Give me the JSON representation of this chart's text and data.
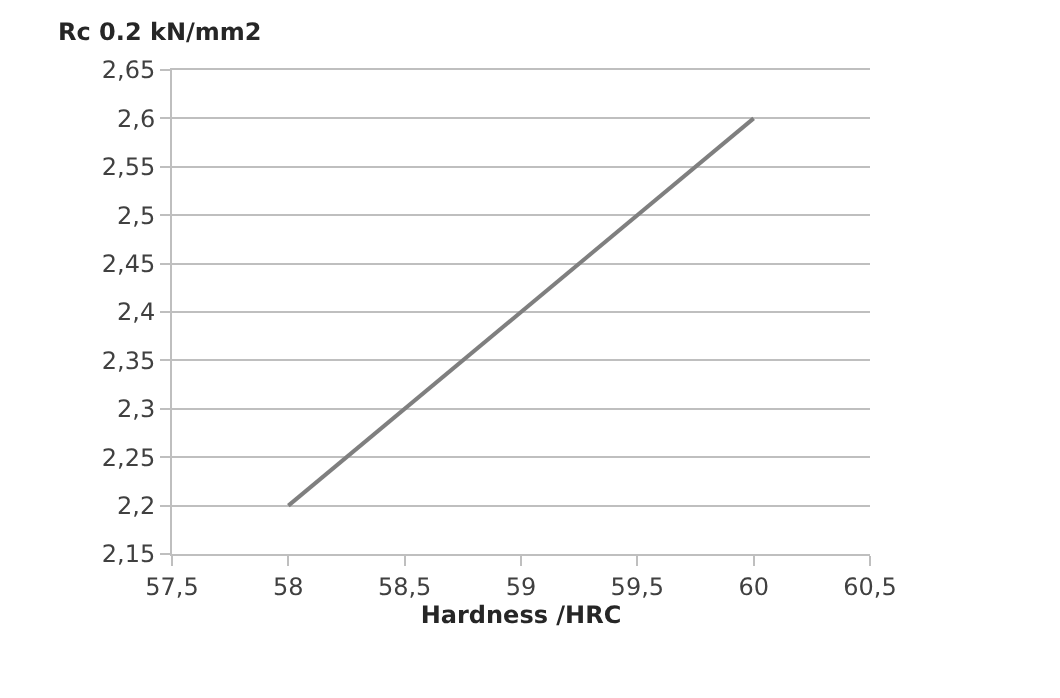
{
  "chart_data": {
    "type": "line",
    "ylabel": "Rc 0.2 kN/mm2",
    "xlabel": "Hardness /HRC",
    "x": [
      58,
      60
    ],
    "series": [
      {
        "color": "#7f7f7f",
        "values": [
          2.2,
          2.6
        ]
      }
    ],
    "xlim": [
      57.5,
      60.5
    ],
    "xticks": [
      {
        "value": 57.5,
        "label": "57,5"
      },
      58,
      {
        "value": 58.5,
        "label": "58,5"
      },
      59,
      {
        "value": 59.5,
        "label": "59,5"
      },
      60,
      {
        "value": 60.5,
        "label": "60,5"
      }
    ],
    "ylim": [
      2.15,
      2.65
    ],
    "yticks": [
      {
        "value": 2.15,
        "label": "2,15"
      },
      {
        "value": 2.2,
        "label": "2,2"
      },
      {
        "value": 2.25,
        "label": "2,25"
      },
      {
        "value": 2.3,
        "label": "2,3"
      },
      {
        "value": 2.35,
        "label": "2,35"
      },
      {
        "value": 2.4,
        "label": "2,4"
      },
      {
        "value": 2.45,
        "label": "2,45"
      },
      {
        "value": 2.5,
        "label": "2,5"
      },
      {
        "value": 2.55,
        "label": "2,55"
      },
      {
        "value": 2.6,
        "label": "2,6"
      },
      {
        "value": 2.65,
        "label": "2,65"
      }
    ],
    "grid": "y",
    "marker": "none",
    "line_style": "solid"
  }
}
